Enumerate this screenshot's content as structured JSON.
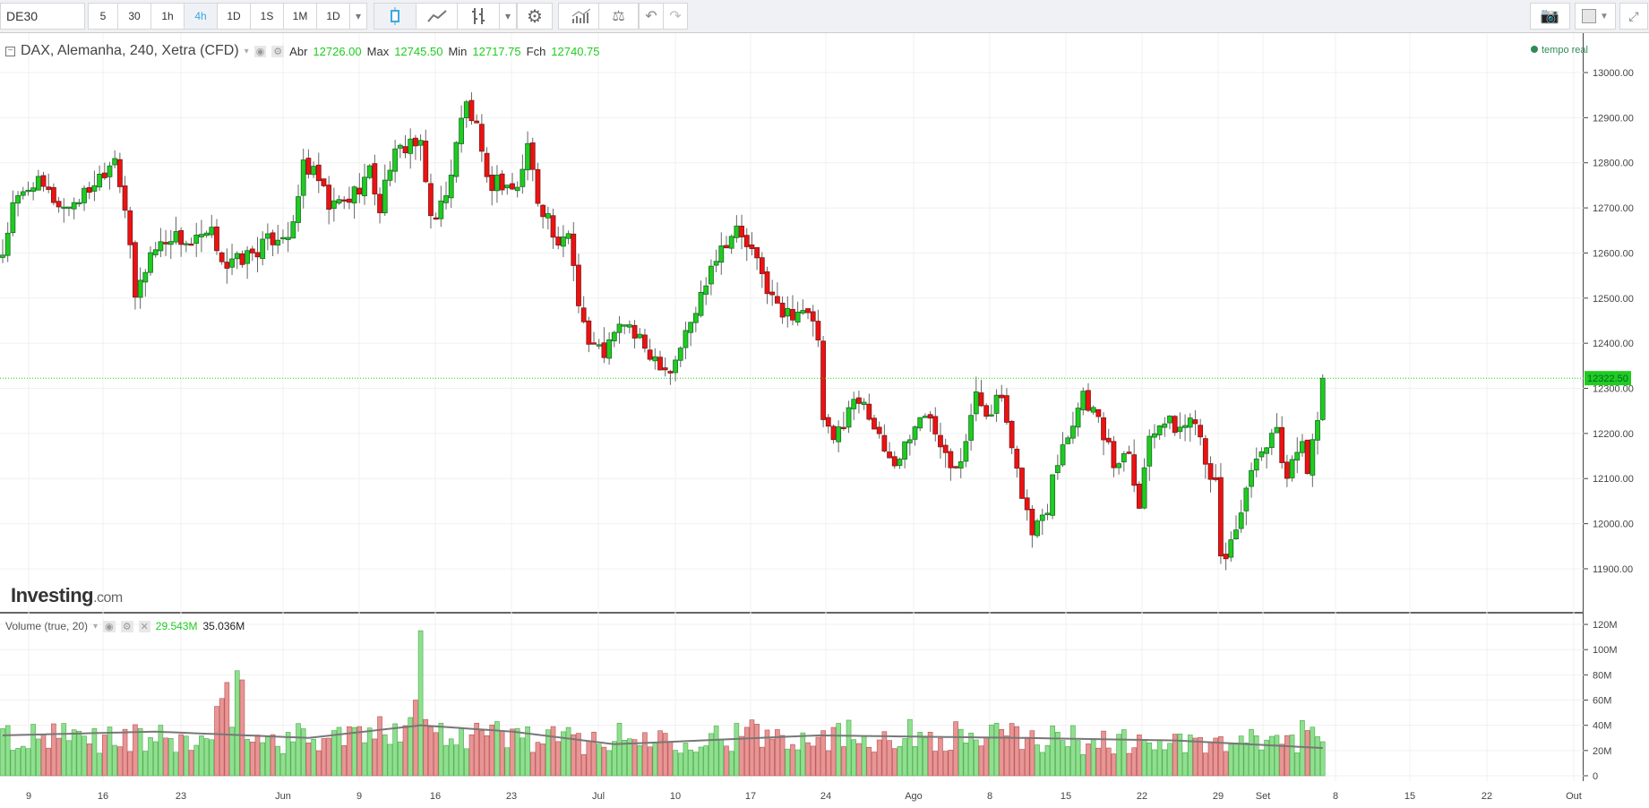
{
  "toolbar": {
    "symbol": "DE30",
    "intervals": [
      "5",
      "30",
      "1h",
      "4h",
      "1D",
      "1S",
      "1M",
      "1D"
    ],
    "active_interval": "4h"
  },
  "legend": {
    "title": "DAX, Alemanha, 240, Xetra (CFD)",
    "open_label": "Abr",
    "open": "12726.00",
    "high_label": "Max",
    "high": "12745.50",
    "low_label": "Min",
    "low": "12717.75",
    "close_label": "Fch",
    "close": "12740.75"
  },
  "status": "tempo real",
  "logo": {
    "main": "Investing",
    "suffix": ".com"
  },
  "volume_legend": {
    "title": "Volume (true, 20)",
    "value": "29.543M",
    "ma": "35.036M"
  },
  "colors": {
    "up": "#1fcc1f",
    "down": "#ee1111",
    "grid": "#f0f0f0",
    "price_line": "#1fcc1f"
  },
  "chart_data": {
    "type": "candlestick",
    "title": "DAX, Alemanha, 240, Xetra (CFD)",
    "current_price": "12322.50",
    "y_ticks": [
      "13000.00",
      "12900.00",
      "12800.00",
      "12700.00",
      "12600.00",
      "12500.00",
      "12400.00",
      "12300.00",
      "12200.00",
      "12100.00",
      "12000.00",
      "11900.00"
    ],
    "ylim": [
      11820,
      13060
    ],
    "vol_ticks": [
      "120M",
      "100M",
      "80M",
      "60M",
      "40M",
      "20M",
      "0"
    ],
    "x_ticks": [
      "9",
      "16",
      "23",
      "Jun",
      "9",
      "16",
      "23",
      "Jul",
      "10",
      "17",
      "24",
      "Ago",
      "8",
      "15",
      "22",
      "29",
      "Set",
      "8",
      "15",
      "22",
      "Out"
    ],
    "bar_count": 260,
    "close_waypoints": [
      [
        0,
        12600
      ],
      [
        2,
        12700
      ],
      [
        6,
        12760
      ],
      [
        12,
        12700
      ],
      [
        16,
        12730
      ],
      [
        21,
        12800
      ],
      [
        22,
        12820
      ],
      [
        24,
        12700
      ],
      [
        26,
        12500
      ],
      [
        29,
        12600
      ],
      [
        33,
        12640
      ],
      [
        37,
        12620
      ],
      [
        41,
        12640
      ],
      [
        44,
        12570
      ],
      [
        49,
        12600
      ],
      [
        54,
        12640
      ],
      [
        57,
        12650
      ],
      [
        59,
        12800
      ],
      [
        62,
        12760
      ],
      [
        64,
        12700
      ],
      [
        68,
        12720
      ],
      [
        72,
        12780
      ],
      [
        74,
        12700
      ],
      [
        76,
        12800
      ],
      [
        80,
        12850
      ],
      [
        82,
        12830
      ],
      [
        84,
        12680
      ],
      [
        87,
        12720
      ],
      [
        89,
        12850
      ],
      [
        91,
        12930
      ],
      [
        93,
        12870
      ],
      [
        95,
        12750
      ],
      [
        97,
        12760
      ],
      [
        101,
        12740
      ],
      [
        103,
        12840
      ],
      [
        105,
        12720
      ],
      [
        107,
        12680
      ],
      [
        109,
        12600
      ],
      [
        111,
        12650
      ],
      [
        113,
        12500
      ],
      [
        115,
        12400
      ],
      [
        118,
        12380
      ],
      [
        122,
        12450
      ],
      [
        125,
        12400
      ],
      [
        128,
        12370
      ],
      [
        131,
        12340
      ],
      [
        134,
        12420
      ],
      [
        136,
        12470
      ],
      [
        139,
        12580
      ],
      [
        142,
        12630
      ],
      [
        144,
        12650
      ],
      [
        147,
        12600
      ],
      [
        151,
        12500
      ],
      [
        153,
        12460
      ],
      [
        157,
        12480
      ],
      [
        160,
        12410
      ],
      [
        161,
        12220
      ],
      [
        163,
        12180
      ],
      [
        166,
        12260
      ],
      [
        169,
        12280
      ],
      [
        172,
        12180
      ],
      [
        175,
        12130
      ],
      [
        179,
        12220
      ],
      [
        182,
        12240
      ],
      [
        186,
        12140
      ],
      [
        188,
        12150
      ],
      [
        191,
        12280
      ],
      [
        193,
        12250
      ],
      [
        196,
        12280
      ],
      [
        198,
        12150
      ],
      [
        200,
        12070
      ],
      [
        202,
        11980
      ],
      [
        205,
        12040
      ],
      [
        206,
        12120
      ],
      [
        209,
        12200
      ],
      [
        212,
        12290
      ],
      [
        214,
        12250
      ],
      [
        216,
        12200
      ],
      [
        218,
        12130
      ],
      [
        221,
        12170
      ],
      [
        223,
        12040
      ],
      [
        225,
        12200
      ],
      [
        227,
        12230
      ],
      [
        231,
        12210
      ],
      [
        234,
        12240
      ],
      [
        236,
        12150
      ],
      [
        238,
        12080
      ],
      [
        239,
        11920
      ],
      [
        240,
        11930
      ],
      [
        242,
        11990
      ],
      [
        244,
        12080
      ],
      [
        247,
        12150
      ],
      [
        250,
        12200
      ],
      [
        252,
        12100
      ],
      [
        255,
        12200
      ],
      [
        256,
        12120
      ],
      [
        258,
        12220
      ],
      [
        259,
        12322.5
      ]
    ],
    "volume_waypoints_M": [
      [
        0,
        30
      ],
      [
        20,
        32
      ],
      [
        40,
        28
      ],
      [
        47,
        76
      ],
      [
        48,
        30
      ],
      [
        75,
        35
      ],
      [
        81,
        60
      ],
      [
        82,
        115
      ],
      [
        83,
        40
      ],
      [
        110,
        30
      ],
      [
        160,
        35
      ],
      [
        200,
        32
      ],
      [
        240,
        25
      ],
      [
        259,
        35
      ]
    ],
    "volume_ma_M": [
      [
        0,
        32
      ],
      [
        30,
        35
      ],
      [
        60,
        30
      ],
      [
        82,
        40
      ],
      [
        100,
        35
      ],
      [
        120,
        25
      ],
      [
        160,
        32
      ],
      [
        200,
        30
      ],
      [
        230,
        28
      ],
      [
        259,
        22
      ]
    ]
  }
}
